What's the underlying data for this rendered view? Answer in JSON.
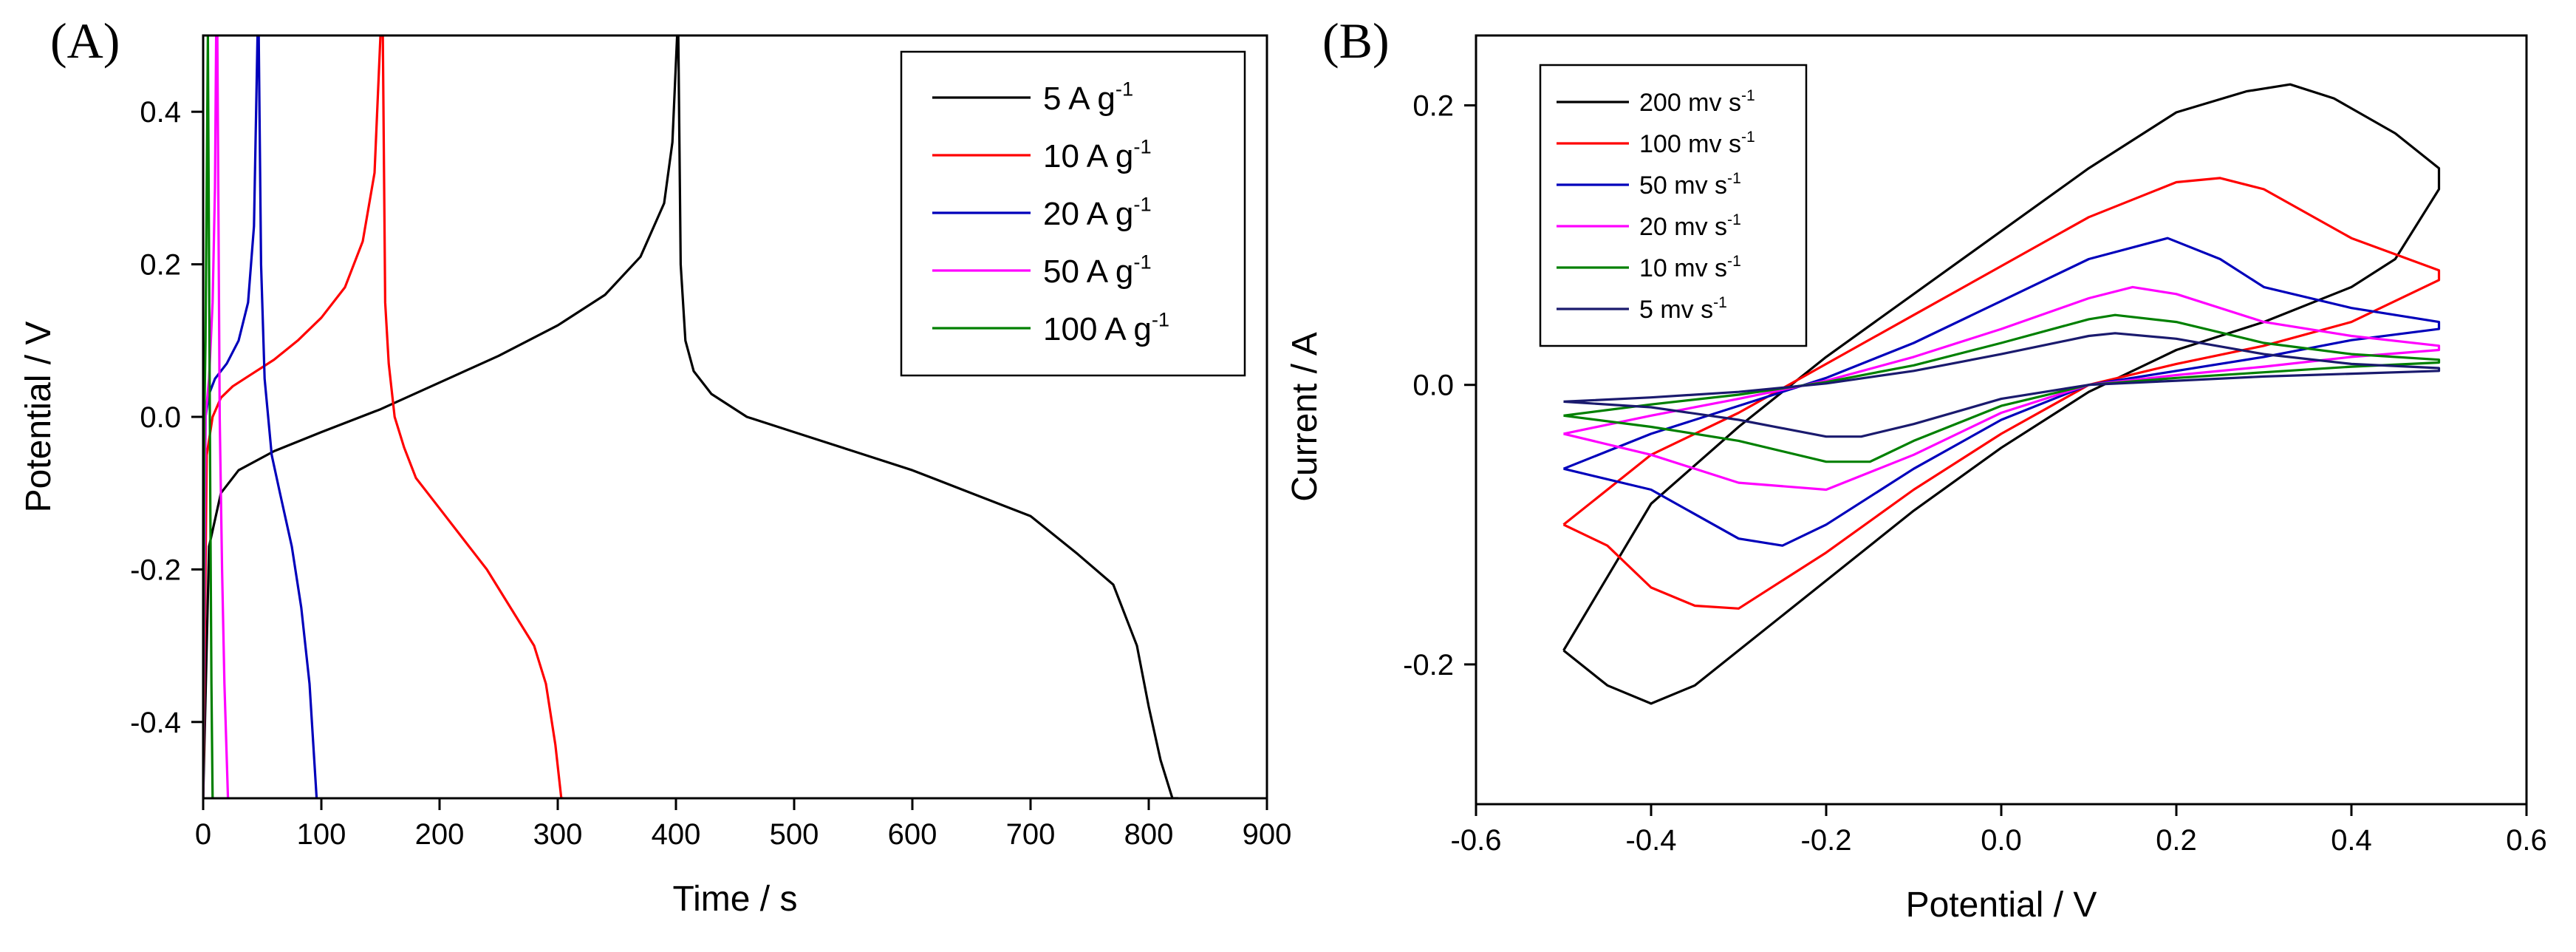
{
  "chart_data": [
    {
      "panel": "(A)",
      "type": "line",
      "xlabel": "Time / s",
      "ylabel": "Potential / V",
      "xlim": [
        0,
        900
      ],
      "ylim": [
        -0.5,
        0.5
      ],
      "xticks": [
        0,
        100,
        200,
        300,
        400,
        500,
        600,
        700,
        800,
        900
      ],
      "yticks": [
        -0.4,
        -0.2,
        0.0,
        0.2,
        0.4
      ],
      "ytick_labels": [
        "-0.4",
        "-0.2",
        "0.0",
        "0.2",
        "0.4"
      ],
      "legend_position": "top-right",
      "series": [
        {
          "name": "5 A g",
          "sup": "-1",
          "color": "#000000",
          "x": [
            0,
            5,
            15,
            30,
            60,
            100,
            150,
            200,
            250,
            300,
            340,
            370,
            390,
            397,
            401,
            402,
            404,
            408,
            415,
            430,
            460,
            500,
            550,
            600,
            650,
            700,
            740,
            770,
            790,
            800,
            810,
            820,
            825
          ],
          "y": [
            -0.5,
            -0.17,
            -0.1,
            -0.07,
            -0.045,
            -0.02,
            0.01,
            0.045,
            0.08,
            0.12,
            0.16,
            0.21,
            0.28,
            0.36,
            0.5,
            0.5,
            0.2,
            0.1,
            0.06,
            0.03,
            0.0,
            -0.02,
            -0.045,
            -0.07,
            -0.1,
            -0.13,
            -0.18,
            -0.22,
            -0.3,
            -0.38,
            -0.45,
            -0.5,
            -0.5
          ]
        },
        {
          "name": "10 A g",
          "sup": "-1",
          "color": "#ff0000",
          "x": [
            0,
            3,
            8,
            15,
            25,
            40,
            60,
            80,
            100,
            120,
            135,
            145,
            150,
            152,
            154,
            157,
            162,
            170,
            180,
            200,
            220,
            240,
            260,
            280,
            290,
            298,
            303,
            305
          ],
          "y": [
            -0.5,
            -0.05,
            0.0,
            0.025,
            0.04,
            0.055,
            0.075,
            0.1,
            0.13,
            0.17,
            0.23,
            0.32,
            0.5,
            0.5,
            0.15,
            0.07,
            0.0,
            -0.04,
            -0.08,
            -0.12,
            -0.16,
            -0.2,
            -0.25,
            -0.3,
            -0.35,
            -0.43,
            -0.5,
            -0.5
          ]
        },
        {
          "name": "20 A g",
          "sup": "-1",
          "color": "#0000bb",
          "x": [
            0,
            2,
            5,
            10,
            20,
            30,
            38,
            43,
            46,
            47,
            49,
            52,
            58,
            65,
            75,
            83,
            90,
            94,
            96
          ],
          "y": [
            -0.5,
            0.0,
            0.03,
            0.05,
            0.07,
            0.1,
            0.15,
            0.25,
            0.5,
            0.5,
            0.2,
            0.05,
            -0.05,
            -0.1,
            -0.17,
            -0.25,
            -0.35,
            -0.45,
            -0.5
          ]
        },
        {
          "name": "50 A g",
          "sup": "-1",
          "color": "#ff00ff",
          "x": [
            0,
            2,
            5,
            8,
            10,
            11,
            12,
            14,
            16,
            18,
            20,
            21
          ],
          "y": [
            -0.5,
            0.0,
            0.05,
            0.15,
            0.3,
            0.5,
            0.5,
            0.0,
            -0.2,
            -0.35,
            -0.45,
            -0.5
          ]
        },
        {
          "name": "100 A g",
          "sup": "-1",
          "color": "#008000",
          "x": [
            0,
            1,
            2,
            3,
            4,
            5,
            6,
            7,
            8
          ],
          "y": [
            -0.5,
            0.0,
            0.1,
            0.3,
            0.5,
            0.2,
            -0.1,
            -0.35,
            -0.5
          ]
        }
      ]
    },
    {
      "panel": "(B)",
      "type": "line",
      "xlabel": "Potential / V",
      "ylabel": "Current / A",
      "xlim": [
        -0.6,
        0.6
      ],
      "ylim": [
        -0.3,
        0.25
      ],
      "xticks": [
        -0.6,
        -0.4,
        -0.2,
        0.0,
        0.2,
        0.4,
        0.6
      ],
      "xtick_labels": [
        "-0.6",
        "-0.4",
        "-0.2",
        "0.0",
        "0.2",
        "0.4",
        "0.6"
      ],
      "yticks": [
        -0.2,
        0.0,
        0.2
      ],
      "ytick_labels": [
        "-0.2",
        "0.0",
        "0.2"
      ],
      "legend_position": "top-left",
      "series": [
        {
          "name": "200 mv s",
          "sup": "-1",
          "color": "#000000",
          "x": [
            -0.5,
            -0.4,
            -0.3,
            -0.2,
            -0.1,
            0.0,
            0.1,
            0.2,
            0.28,
            0.33,
            0.38,
            0.45,
            0.5,
            0.5,
            0.45,
            0.4,
            0.3,
            0.2,
            0.1,
            0.0,
            -0.1,
            -0.2,
            -0.3,
            -0.35,
            -0.4,
            -0.45,
            -0.5,
            -0.5
          ],
          "y": [
            -0.19,
            -0.085,
            -0.03,
            0.02,
            0.065,
            0.11,
            0.155,
            0.195,
            0.21,
            0.215,
            0.205,
            0.18,
            0.155,
            0.14,
            0.09,
            0.07,
            0.045,
            0.025,
            -0.005,
            -0.045,
            -0.09,
            -0.14,
            -0.19,
            -0.215,
            -0.228,
            -0.215,
            -0.19,
            -0.19
          ]
        },
        {
          "name": "100 mv s",
          "sup": "-1",
          "color": "#ff0000",
          "x": [
            -0.5,
            -0.4,
            -0.3,
            -0.2,
            -0.1,
            0.0,
            0.1,
            0.2,
            0.25,
            0.3,
            0.4,
            0.5,
            0.5,
            0.4,
            0.3,
            0.2,
            0.1,
            0.0,
            -0.1,
            -0.2,
            -0.3,
            -0.35,
            -0.4,
            -0.45,
            -0.5,
            -0.5
          ],
          "y": [
            -0.1,
            -0.05,
            -0.02,
            0.015,
            0.05,
            0.085,
            0.12,
            0.145,
            0.148,
            0.14,
            0.105,
            0.082,
            0.075,
            0.045,
            0.028,
            0.015,
            0.0,
            -0.035,
            -0.075,
            -0.12,
            -0.16,
            -0.158,
            -0.145,
            -0.115,
            -0.1,
            -0.1
          ]
        },
        {
          "name": "50 mv s",
          "sup": "-1",
          "color": "#0000bb",
          "x": [
            -0.5,
            -0.4,
            -0.3,
            -0.2,
            -0.1,
            0.0,
            0.1,
            0.19,
            0.25,
            0.3,
            0.4,
            0.5,
            0.5,
            0.4,
            0.3,
            0.2,
            0.1,
            0.0,
            -0.1,
            -0.2,
            -0.25,
            -0.3,
            -0.4,
            -0.5,
            -0.5
          ],
          "y": [
            -0.06,
            -0.035,
            -0.015,
            0.005,
            0.03,
            0.06,
            0.09,
            0.105,
            0.09,
            0.07,
            0.055,
            0.045,
            0.04,
            0.032,
            0.02,
            0.01,
            0.0,
            -0.025,
            -0.06,
            -0.1,
            -0.115,
            -0.11,
            -0.075,
            -0.06,
            -0.06
          ]
        },
        {
          "name": "20 mv s",
          "sup": "-1",
          "color": "#ff00ff",
          "x": [
            -0.5,
            -0.4,
            -0.3,
            -0.2,
            -0.1,
            0.0,
            0.1,
            0.15,
            0.2,
            0.3,
            0.4,
            0.5,
            0.5,
            0.4,
            0.3,
            0.2,
            0.1,
            0.0,
            -0.1,
            -0.2,
            -0.3,
            -0.4,
            -0.5,
            -0.5
          ],
          "y": [
            -0.035,
            -0.022,
            -0.01,
            0.003,
            0.02,
            0.04,
            0.062,
            0.07,
            0.065,
            0.045,
            0.035,
            0.028,
            0.025,
            0.02,
            0.013,
            0.007,
            0.0,
            -0.02,
            -0.05,
            -0.075,
            -0.07,
            -0.05,
            -0.035,
            -0.035
          ]
        },
        {
          "name": "10 mv s",
          "sup": "-1",
          "color": "#008000",
          "x": [
            -0.5,
            -0.4,
            -0.3,
            -0.2,
            -0.1,
            0.0,
            0.1,
            0.13,
            0.2,
            0.3,
            0.4,
            0.5,
            0.5,
            0.4,
            0.3,
            0.2,
            0.1,
            0.0,
            -0.1,
            -0.15,
            -0.2,
            -0.3,
            -0.4,
            -0.5,
            -0.5
          ],
          "y": [
            -0.022,
            -0.014,
            -0.007,
            0.002,
            0.014,
            0.03,
            0.047,
            0.05,
            0.045,
            0.03,
            0.022,
            0.018,
            0.016,
            0.013,
            0.009,
            0.005,
            0.0,
            -0.015,
            -0.04,
            -0.055,
            -0.055,
            -0.04,
            -0.03,
            -0.022,
            -0.022
          ]
        },
        {
          "name": "5 mv s",
          "sup": "-1",
          "color": "#1a1a6e",
          "x": [
            -0.5,
            -0.4,
            -0.3,
            -0.2,
            -0.1,
            0.0,
            0.1,
            0.13,
            0.2,
            0.3,
            0.4,
            0.5,
            0.5,
            0.4,
            0.3,
            0.2,
            0.1,
            0.0,
            -0.1,
            -0.16,
            -0.2,
            -0.3,
            -0.4,
            -0.5,
            -0.5
          ],
          "y": [
            -0.012,
            -0.009,
            -0.005,
            0.001,
            0.01,
            0.022,
            0.035,
            0.037,
            0.033,
            0.022,
            0.015,
            0.012,
            0.01,
            0.008,
            0.006,
            0.003,
            0.0,
            -0.01,
            -0.028,
            -0.037,
            -0.037,
            -0.025,
            -0.016,
            -0.012,
            -0.012
          ]
        }
      ]
    }
  ]
}
